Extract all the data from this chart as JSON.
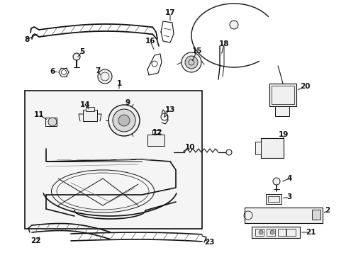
{
  "bg_color": "#ffffff",
  "fig_width": 4.89,
  "fig_height": 3.6,
  "dpi": 100,
  "dk": "#111111",
  "gray": "#888888",
  "fill_light": "#f0f0f0",
  "fill_mid": "#d8d8d8"
}
